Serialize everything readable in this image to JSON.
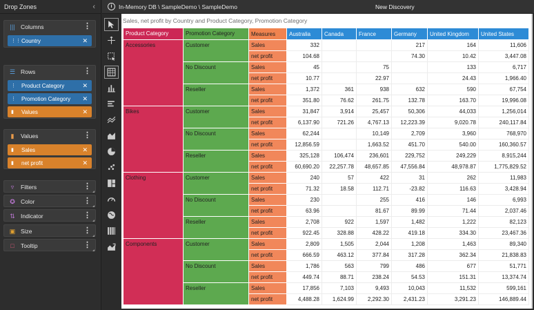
{
  "drop_panel": {
    "title": "Drop Zones",
    "columns_zone": {
      "title": "Columns",
      "pills": [
        {
          "label": "Country",
          "color": "blue"
        }
      ]
    },
    "rows_zone": {
      "title": "Rows",
      "pills": [
        {
          "label": "Product Category",
          "color": "blue"
        },
        {
          "label": "Promotion Category",
          "color": "blue"
        },
        {
          "label": "Values",
          "color": "orange"
        }
      ]
    },
    "values_zone": {
      "title": "Values",
      "pills": [
        {
          "label": "Sales",
          "color": "orange"
        },
        {
          "label": "net profit",
          "color": "orange"
        }
      ]
    },
    "filters": "Filters",
    "color": "Color",
    "indicator": "Indicator",
    "size": "Size",
    "tooltip": "Tooltip"
  },
  "topbar": {
    "breadcrumb": "In-Memory DB \\ SampleDemo \\ SampleDemo",
    "title": "New Discovery"
  },
  "canvas": {
    "subtitle": "Sales, net profit by Country and Product Category, Promotion Category"
  },
  "pivot": {
    "headers": [
      "Product Category",
      "Promotion Category",
      "Measures",
      "Australia",
      "Canada",
      "France",
      "Germany",
      "United Kingdom",
      "United States"
    ],
    "groups": [
      {
        "category": "Accessories",
        "promos": [
          {
            "name": "Customer",
            "sales": [
              "332",
              "",
              "",
              "217",
              "164",
              "11,606"
            ],
            "profit": [
              "104.68",
              "",
              "",
              "74.30",
              "10.42",
              "3,447.08"
            ]
          },
          {
            "name": "No Discount",
            "sales": [
              "45",
              "",
              "75",
              "",
              "133",
              "6,717"
            ],
            "profit": [
              "10.77",
              "",
              "22.97",
              "",
              "24.43",
              "1,966.40"
            ]
          },
          {
            "name": "Reseller",
            "sales": [
              "1,372",
              "361",
              "938",
              "632",
              "590",
              "67,754"
            ],
            "profit": [
              "351.80",
              "76.62",
              "261.75",
              "132.78",
              "163.70",
              "19,996.08"
            ]
          }
        ]
      },
      {
        "category": "Bikes",
        "promos": [
          {
            "name": "Customer",
            "sales": [
              "31,847",
              "3,914",
              "25,457",
              "50,306",
              "44,033",
              "1,256,014"
            ],
            "profit": [
              "6,137.90",
              "721.26",
              "4,767.13",
              "12,223.39",
              "9,020.78",
              "240,117.84"
            ]
          },
          {
            "name": "No Discount",
            "sales": [
              "62,244",
              "",
              "10,149",
              "2,709",
              "3,960",
              "768,970"
            ],
            "profit": [
              "12,856.59",
              "",
              "1,663.52",
              "451.70",
              "540.00",
              "160,360.57"
            ]
          },
          {
            "name": "Reseller",
            "sales": [
              "325,128",
              "106,474",
              "236,601",
              "229,752",
              "249,229",
              "8,915,244"
            ],
            "profit": [
              "60,690.20",
              "22,257.78",
              "48,657.85",
              "47,556.84",
              "48,978.87",
              "1,775,829.52"
            ]
          }
        ]
      },
      {
        "category": "Clothing",
        "promos": [
          {
            "name": "Customer",
            "sales": [
              "240",
              "57",
              "422",
              "31",
              "262",
              "11,983"
            ],
            "profit": [
              "71.32",
              "18.58",
              "112.71",
              "-23.82",
              "116.63",
              "3,428.94"
            ]
          },
          {
            "name": "No Discount",
            "sales": [
              "230",
              "",
              "255",
              "416",
              "146",
              "6,993"
            ],
            "profit": [
              "63.96",
              "",
              "81.67",
              "89.99",
              "71.44",
              "2,037.46"
            ]
          },
          {
            "name": "Reseller",
            "sales": [
              "2,708",
              "922",
              "1,597",
              "1,482",
              "1,222",
              "82,123"
            ],
            "profit": [
              "922.45",
              "328.88",
              "428.22",
              "419.18",
              "334.30",
              "23,467.36"
            ]
          }
        ]
      },
      {
        "category": "Components",
        "promos": [
          {
            "name": "Customer",
            "sales": [
              "2,809",
              "1,505",
              "2,044",
              "1,208",
              "1,463",
              "89,340"
            ],
            "profit": [
              "666.59",
              "463.12",
              "377.84",
              "317.28",
              "362.34",
              "21,838.83"
            ]
          },
          {
            "name": "No Discount",
            "sales": [
              "1,786",
              "563",
              "799",
              "486",
              "677",
              "51,771"
            ],
            "profit": [
              "449.74",
              "88.71",
              "238.24",
              "54.53",
              "151.31",
              "13,374.74"
            ]
          },
          {
            "name": "Reseller",
            "sales": [
              "17,856",
              "7,103",
              "9,493",
              "10,043",
              "11,532",
              "599,161"
            ],
            "profit": [
              "4,488.28",
              "1,624.99",
              "2,292.30",
              "2,431.23",
              "3,291.23",
              "146,889.44"
            ]
          }
        ]
      }
    ],
    "measure_labels": {
      "sales": "Sales",
      "profit": "net profit"
    }
  },
  "colors": {
    "product_category": "#d12e56",
    "promotion_category": "#5da94f",
    "measures": "#f1875a",
    "country_header": "#2d8bd6",
    "pill_blue": "#2e6fa8",
    "pill_orange": "#d9822b"
  },
  "toolbar_icons": [
    "pointer-icon",
    "move-icon",
    "marquee-select-icon",
    "pivot-table-icon",
    "column-chart-icon",
    "bar-chart-icon",
    "line-chart-icon",
    "area-chart-icon",
    "pie-chart-icon",
    "scatter-icon",
    "treemap-icon",
    "gauge-icon",
    "globe-map-icon",
    "grid-icon",
    "kpi-chart-icon"
  ]
}
